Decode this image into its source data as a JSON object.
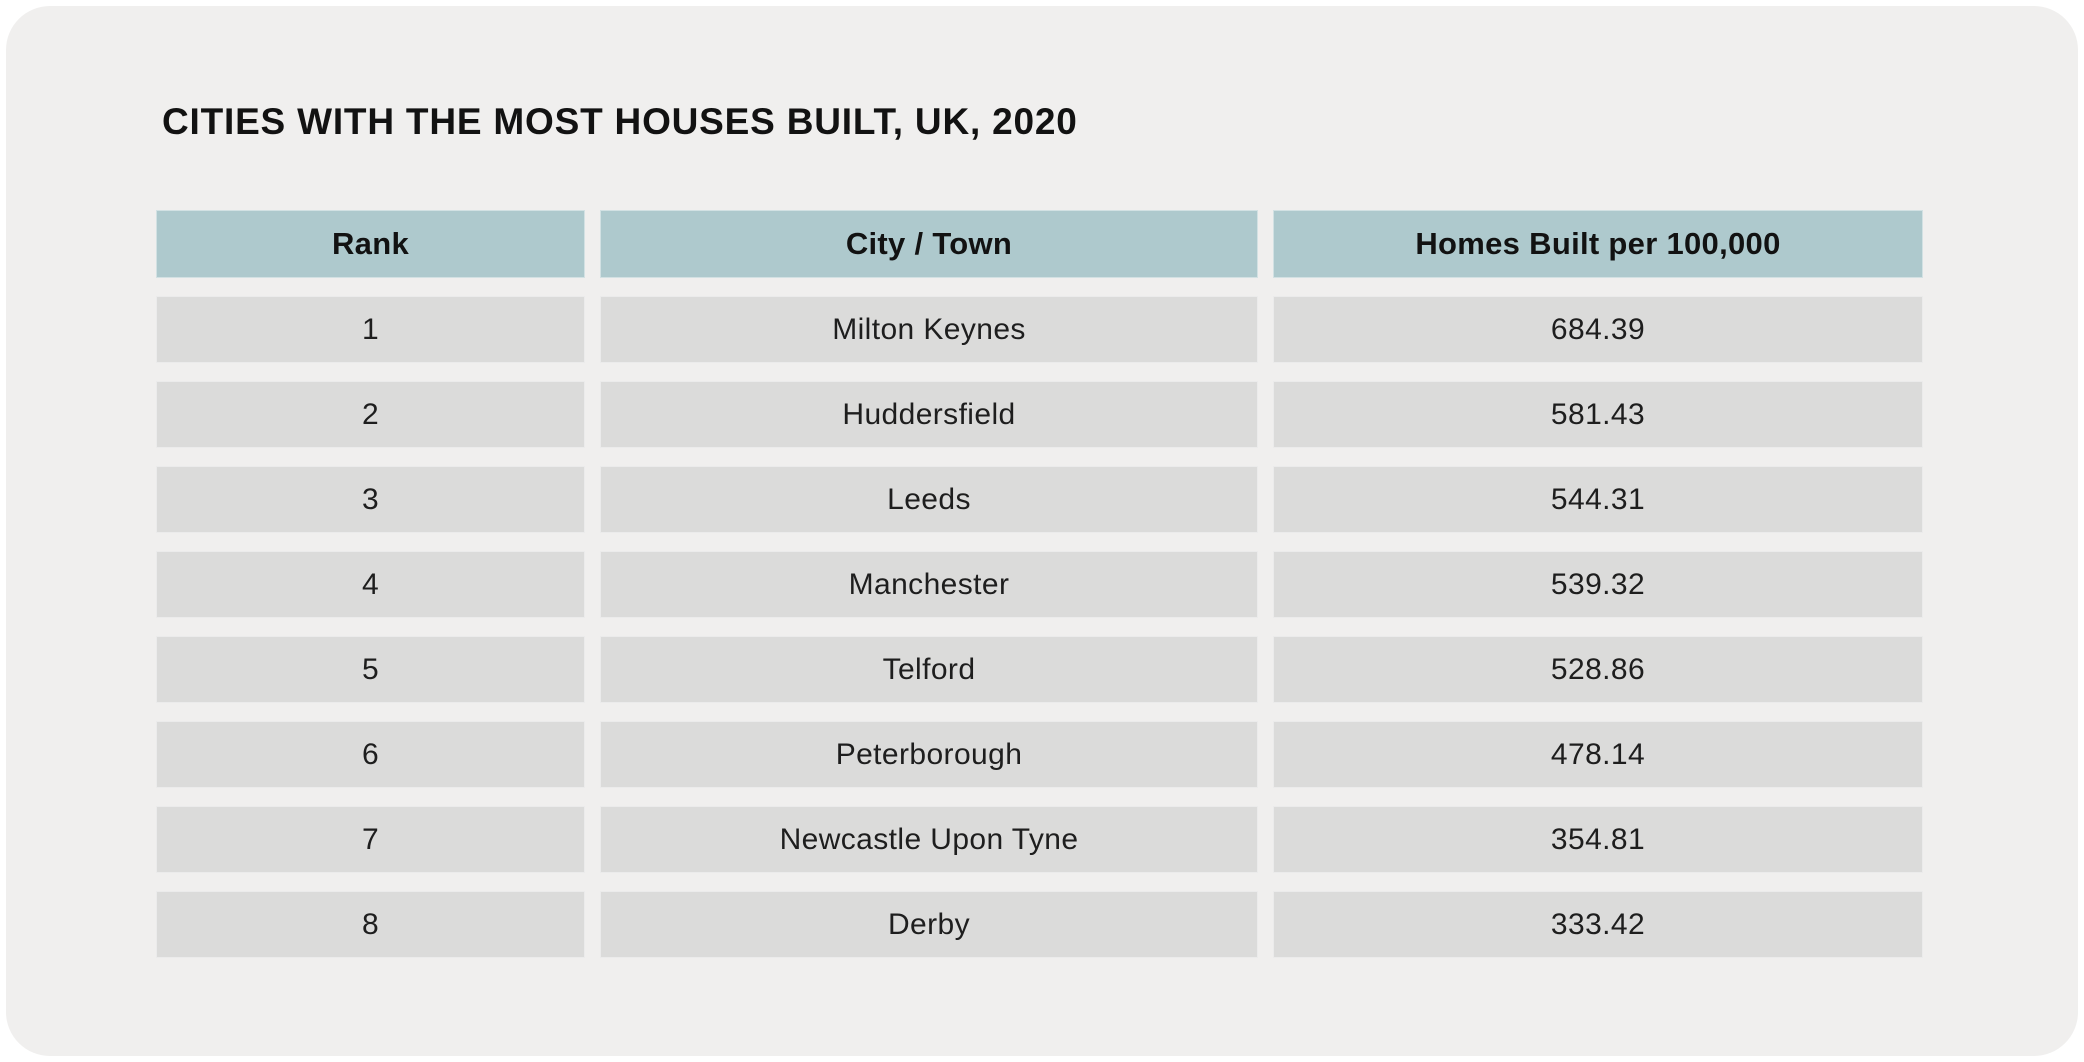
{
  "title": "CITIES WITH THE MOST HOUSES BUILT, UK, 2020",
  "chart_data": {
    "type": "table",
    "title": "CITIES WITH THE MOST HOUSES BUILT, UK, 2020",
    "columns": [
      "Rank",
      "City / Town",
      "Homes Built per 100,000"
    ],
    "rows": [
      [
        "1",
        "Milton Keynes",
        "684.39"
      ],
      [
        "2",
        "Huddersfield",
        "581.43"
      ],
      [
        "3",
        "Leeds",
        "544.31"
      ],
      [
        "4",
        "Manchester",
        "539.32"
      ],
      [
        "5",
        "Telford",
        "528.86"
      ],
      [
        "6",
        "Peterborough",
        "478.14"
      ],
      [
        "7",
        "Newcastle Upon Tyne",
        "354.81"
      ],
      [
        "8",
        "Derby",
        "333.42"
      ]
    ]
  },
  "colors": {
    "card_background": "#f0efee",
    "header_background": "#aec9cd",
    "row_background": "#dbdbda",
    "title_text": "#121212",
    "body_text": "#1e1e1e"
  }
}
